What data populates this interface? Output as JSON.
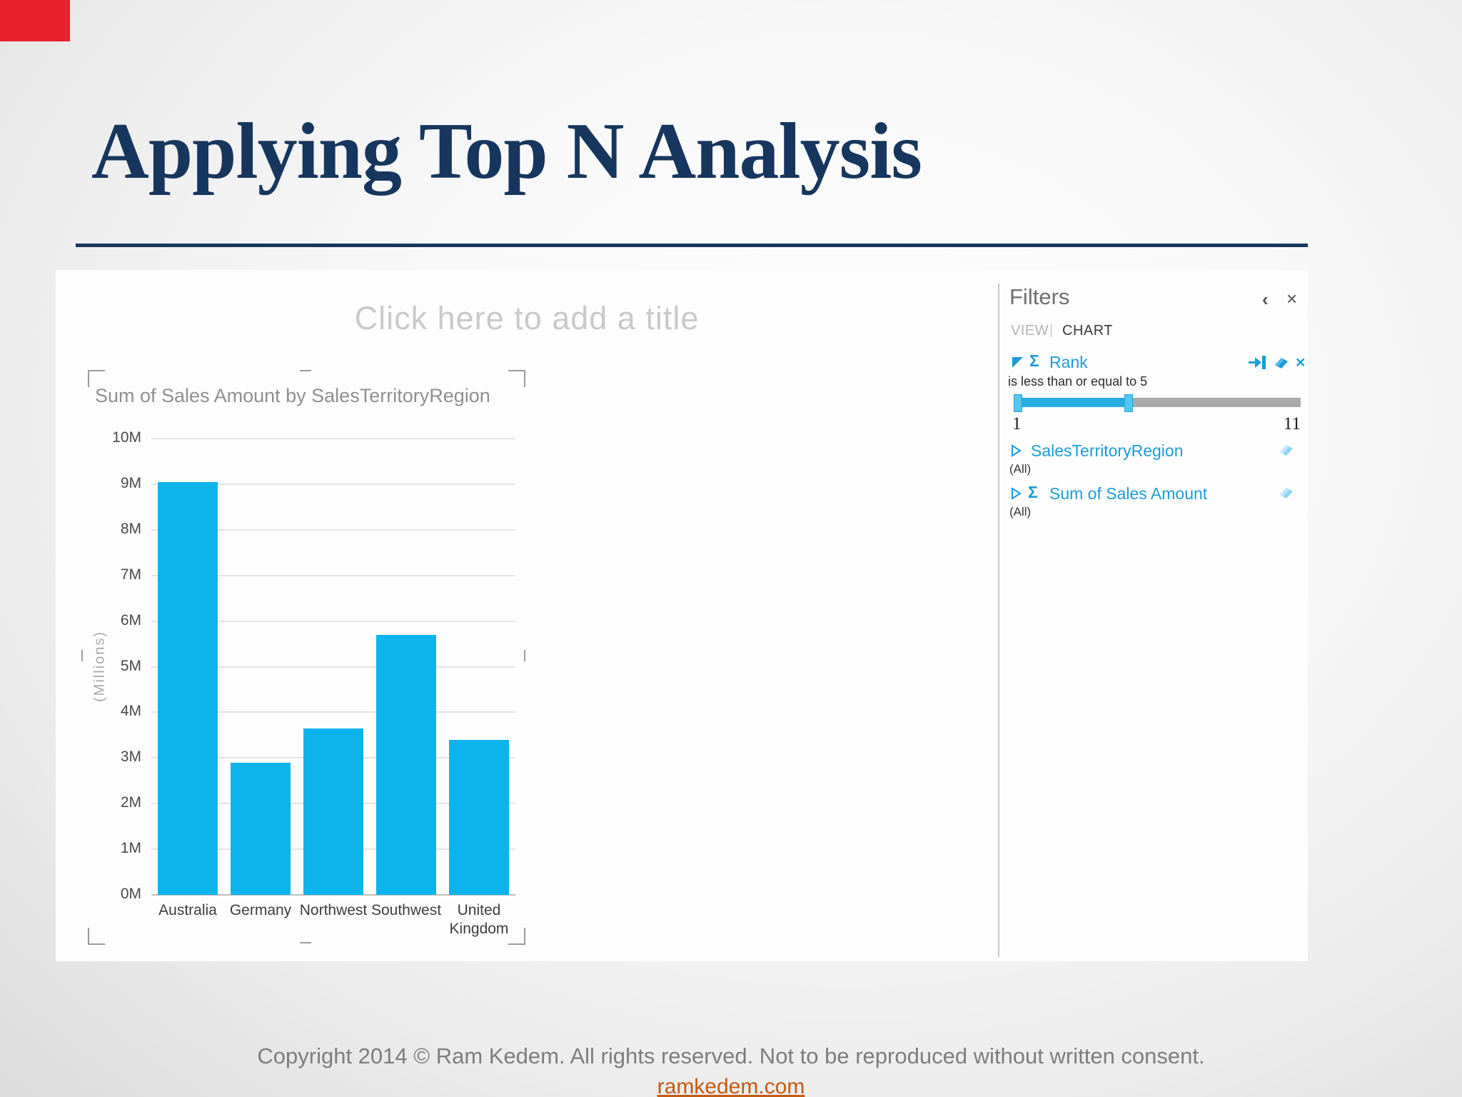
{
  "slide": {
    "title": "Applying Top N Analysis",
    "footer_line1": "Copyright 2014 © Ram Kedem. All rights reserved. Not to be reproduced without written consent.",
    "footer_link": "ramkedem.com"
  },
  "canvas": {
    "title_placeholder": "Click here to add a title"
  },
  "chart_data": {
    "type": "bar",
    "title": "Sum of Sales Amount by SalesTerritoryRegion",
    "categories": [
      "Australia",
      "Germany",
      "Northwest",
      "Southwest",
      "United Kingdom"
    ],
    "values": [
      9.05,
      2.9,
      3.65,
      5.7,
      3.4
    ],
    "value_unit": "M",
    "ylabel": "(Millions)",
    "ylim": [
      0,
      10
    ],
    "ytick_step": 1,
    "bar_color": "#0db4ec",
    "grid": true,
    "legend": "none"
  },
  "filters_panel": {
    "title": "Filters",
    "collapse_icon": "‹",
    "close_icon": "×",
    "tabs": [
      {
        "label": "VIEW",
        "active": false
      },
      {
        "label": "CHART",
        "active": true
      }
    ],
    "tab_separator": "|",
    "rank": {
      "sigma": "Σ",
      "label": "Rank",
      "condition": "is less than or equal to 5",
      "min": 1,
      "max": 11,
      "value": 5,
      "min_label": "1",
      "max_label": "11",
      "delete_icon": "×"
    },
    "fields": [
      {
        "label": "SalesTerritoryRegion",
        "sigma": "",
        "value": "(All)"
      },
      {
        "label": "Sum of Sales Amount",
        "sigma": "Σ",
        "value": "(All)"
      }
    ],
    "accent_color": "#1d9cd8",
    "eraser_color": "#8fd4f2"
  }
}
